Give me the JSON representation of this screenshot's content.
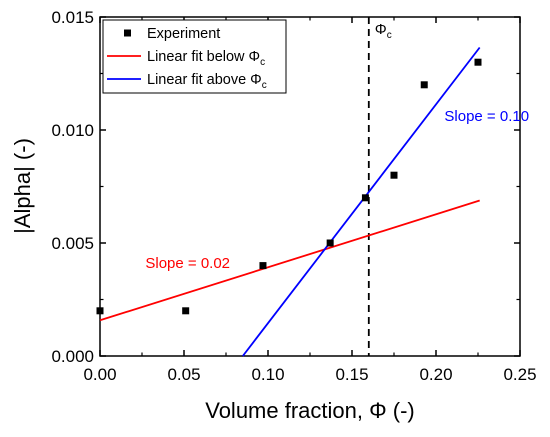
{
  "chart_data": {
    "type": "scatter",
    "xlabel": "Volume fraction, Φ (-)",
    "ylabel": "|Alpha| (-)",
    "xlim": [
      0,
      0.25
    ],
    "ylim": [
      0,
      0.015
    ],
    "xticks": [
      "0.00",
      "0.05",
      "0.10",
      "0.15",
      "0.20",
      "0.25"
    ],
    "yticks": [
      "0.000",
      "0.005",
      "0.010",
      "0.015"
    ],
    "grid": false,
    "legend_position": "top-left",
    "series": [
      {
        "name": "Experiment",
        "kind": "points",
        "color": "#000000",
        "x": [
          0.0,
          0.051,
          0.097,
          0.137,
          0.158,
          0.175,
          0.193,
          0.225
        ],
        "y": [
          0.002,
          0.002,
          0.004,
          0.005,
          0.007,
          0.008,
          0.012,
          0.013
        ]
      },
      {
        "name": "Linear fit below Φc",
        "legend_main": "Linear fit below Φ",
        "legend_sub": "c",
        "kind": "line",
        "color": "#ff0000",
        "x": [
          0.0,
          0.226
        ],
        "y": [
          0.00158,
          0.00688
        ]
      },
      {
        "name": "Linear fit above Φc",
        "legend_main": "Linear fit above Φ",
        "legend_sub": "c",
        "kind": "line",
        "color": "#0000ff",
        "x": [
          0.085,
          0.226
        ],
        "y": [
          0.0,
          0.01365
        ]
      }
    ],
    "vline": {
      "x": 0.16,
      "label_main": "Φ",
      "label_sub": "c"
    },
    "annotations": [
      {
        "text": "Slope = 0.02",
        "x": 0.027,
        "y": 0.0039,
        "color": "#ff0000"
      },
      {
        "text": "Slope = 0.10",
        "x": 0.205,
        "y": 0.0104,
        "color": "#0000ff"
      }
    ]
  }
}
